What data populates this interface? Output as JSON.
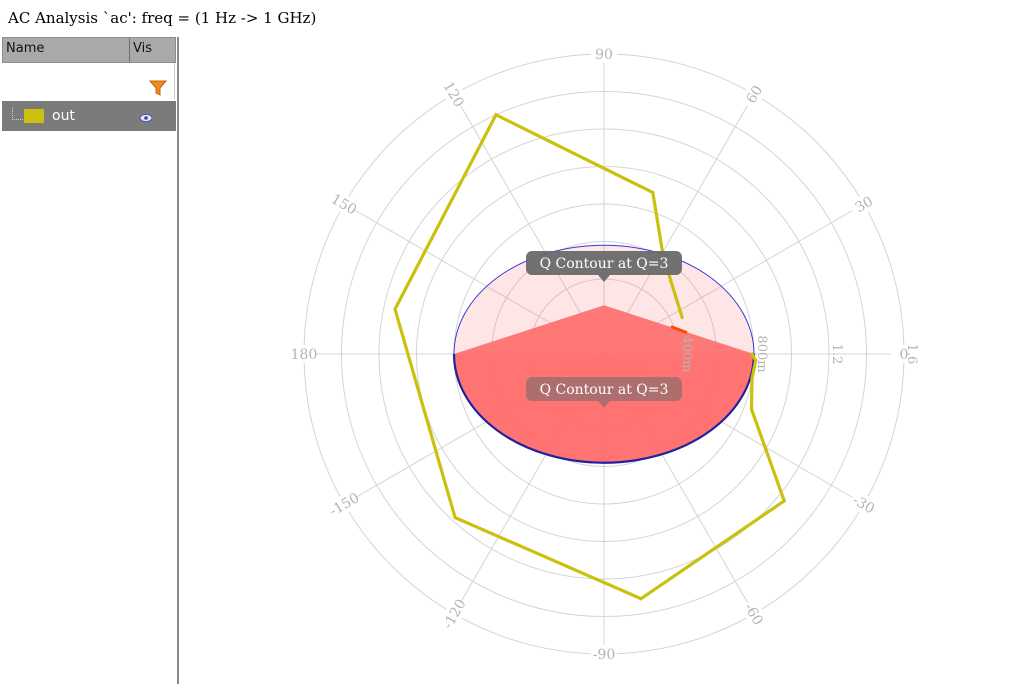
{
  "header": {
    "title": "AC Analysis `ac': freq = (1 Hz -> 1 GHz)"
  },
  "legend_panel": {
    "columns": [
      "Name",
      "Vis"
    ],
    "filter_icon": "filter-icon",
    "visibility_icon": "eye-icon",
    "signals": [
      {
        "name": "out",
        "color": "#c9c10e",
        "visible": true
      }
    ]
  },
  "chart_data": {
    "type": "polar",
    "title": "AC Analysis `ac': freq = (1 Hz -> 1 GHz)",
    "angle_ticks": [
      "90",
      "60",
      "30",
      "0",
      "-30",
      "-60",
      "-90",
      "-120",
      "-150",
      "180",
      "150",
      "120"
    ],
    "angle_tick_values": [
      90,
      60,
      30,
      0,
      -30,
      -60,
      -90,
      -120,
      -150,
      180,
      150,
      120
    ],
    "radial_ticks": [
      0.4,
      0.8,
      1.2,
      1.6
    ],
    "radial_tick_labels": [
      "400m",
      "800m",
      "1.2",
      "1.6"
    ],
    "radial_max": 1.6,
    "grid": true,
    "series": [
      {
        "name": "out",
        "color": "#c9c10e",
        "points": [
          {
            "r": 0.46,
            "a": 25.0
          },
          {
            "r": 0.61,
            "a": 58.8
          },
          {
            "r": 0.9,
            "a": 73.2
          },
          {
            "r": 1.4,
            "a": 114.3
          },
          {
            "r": 1.14,
            "a": 167.9
          },
          {
            "r": 1.18,
            "a": -132.3
          },
          {
            "r": 1.32,
            "a": -81.4
          },
          {
            "r": 1.24,
            "a": -39.2
          },
          {
            "r": 0.84,
            "a": -20.5
          },
          {
            "r": 0.8,
            "a": -9.4
          },
          {
            "r": 0.81,
            "a": -2.4
          },
          {
            "r": 0.79,
            "a": 0.0
          }
        ]
      }
    ],
    "q_contour": {
      "q": 3,
      "label": "Q Contour at Q=3",
      "half_width": 0.8,
      "height": 0.58,
      "sector_color": "#ff6b6b",
      "outline_color": "#3a3ad8",
      "tooltips": [
        "Q Contour at Q=3",
        "Q Contour at Q=3"
      ]
    },
    "marker": {
      "r": 0.42,
      "a": 18.0,
      "color": "#ff4a00"
    }
  }
}
